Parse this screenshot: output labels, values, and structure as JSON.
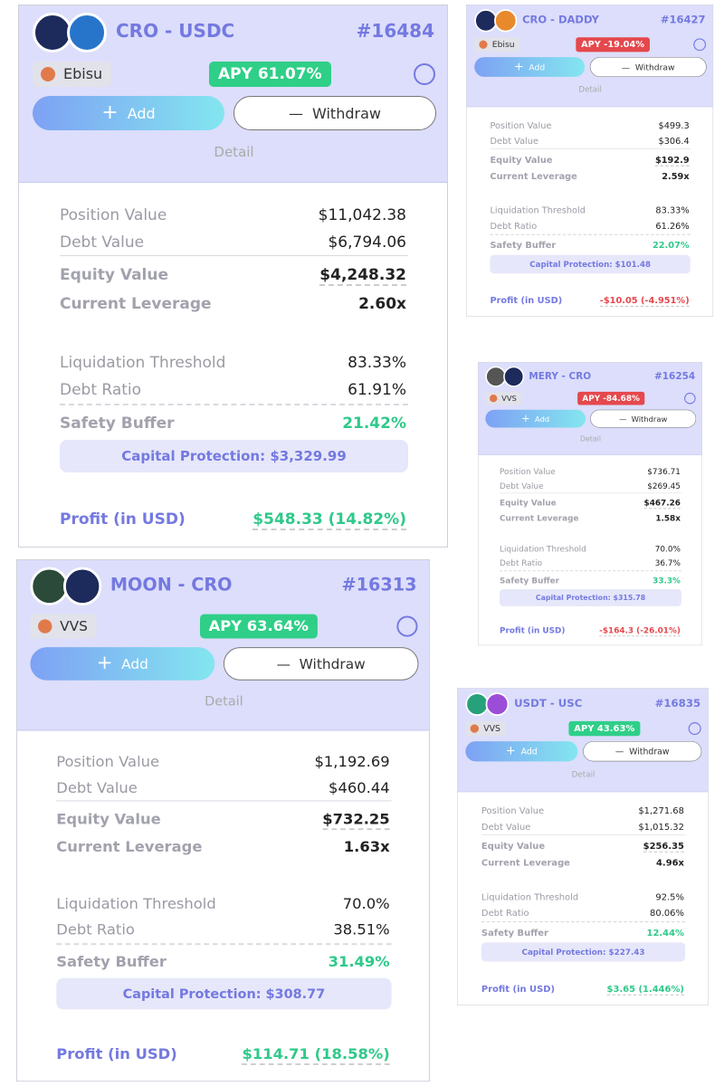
{
  "labels": {
    "add": "Add",
    "withdraw": "Withdraw",
    "detail": "Detail",
    "position_value": "Position Value",
    "debt_value": "Debt Value",
    "equity_value": "Equity Value",
    "current_leverage": "Current Leverage",
    "liquidation_threshold": "Liquidation Threshold",
    "debt_ratio": "Debt Ratio",
    "safety_buffer": "Safety Buffer",
    "profit": "Profit (in USD)"
  },
  "cards": [
    {
      "pair": "CRO - USDC",
      "id": "#16484",
      "dex": "Ebisu",
      "apy": "APY 61.07%",
      "apy_color": "#2fcf88",
      "position_value": "$11,042.38",
      "debt_value": "$6,794.06",
      "equity_value": "$4,248.32",
      "current_leverage": "2.60x",
      "liquidation_threshold": "83.33%",
      "debt_ratio": "61.91%",
      "safety_buffer": "21.42%",
      "capital_protection": "Capital Protection: $3,329.99",
      "profit": "$548.33 (14.82%)",
      "profit_color": "#2fc98a"
    },
    {
      "pair": "CRO - DADDY",
      "id": "#16427",
      "dex": "Ebisu",
      "apy": "APY -19.04%",
      "apy_color": "#e5484d",
      "position_value": "$499.3",
      "debt_value": "$306.4",
      "equity_value": "$192.9",
      "current_leverage": "2.59x",
      "liquidation_threshold": "83.33%",
      "debt_ratio": "61.26%",
      "safety_buffer": "22.07%",
      "capital_protection": "Capital Protection: $101.48",
      "profit": "-$10.05 (-4.951%)",
      "profit_color": "#e5484d"
    },
    {
      "pair": "MERY - CRO",
      "id": "#16254",
      "dex": "VVS",
      "apy": "APY -84.68%",
      "apy_color": "#e5484d",
      "position_value": "$736.71",
      "debt_value": "$269.45",
      "equity_value": "$467.26",
      "current_leverage": "1.58x",
      "liquidation_threshold": "70.0%",
      "debt_ratio": "36.7%",
      "safety_buffer": "33.3%",
      "capital_protection": "Capital Protection: $315.78",
      "profit": "-$164.3 (-26.01%)",
      "profit_color": "#e5484d"
    },
    {
      "pair": "MOON - CRO",
      "id": "#16313",
      "dex": "VVS",
      "apy": "APY 63.64%",
      "apy_color": "#2fcf88",
      "position_value": "$1,192.69",
      "debt_value": "$460.44",
      "equity_value": "$732.25",
      "current_leverage": "1.63x",
      "liquidation_threshold": "70.0%",
      "debt_ratio": "38.51%",
      "safety_buffer": "31.49%",
      "capital_protection": "Capital Protection: $308.77",
      "profit": "$114.71 (18.58%)",
      "profit_color": "#2fc98a"
    },
    {
      "pair": "USDT - USC",
      "id": "#16835",
      "dex": "VVS",
      "apy": "APY 43.63%",
      "apy_color": "#2fcf88",
      "position_value": "$1,271.68",
      "debt_value": "$1,015.32",
      "equity_value": "$256.35",
      "current_leverage": "4.96x",
      "liquidation_threshold": "92.5%",
      "debt_ratio": "80.06%",
      "safety_buffer": "12.44%",
      "capital_protection": "Capital Protection: $227.43",
      "profit": "$3.65 (1.446%)",
      "profit_color": "#2fc98a"
    }
  ]
}
